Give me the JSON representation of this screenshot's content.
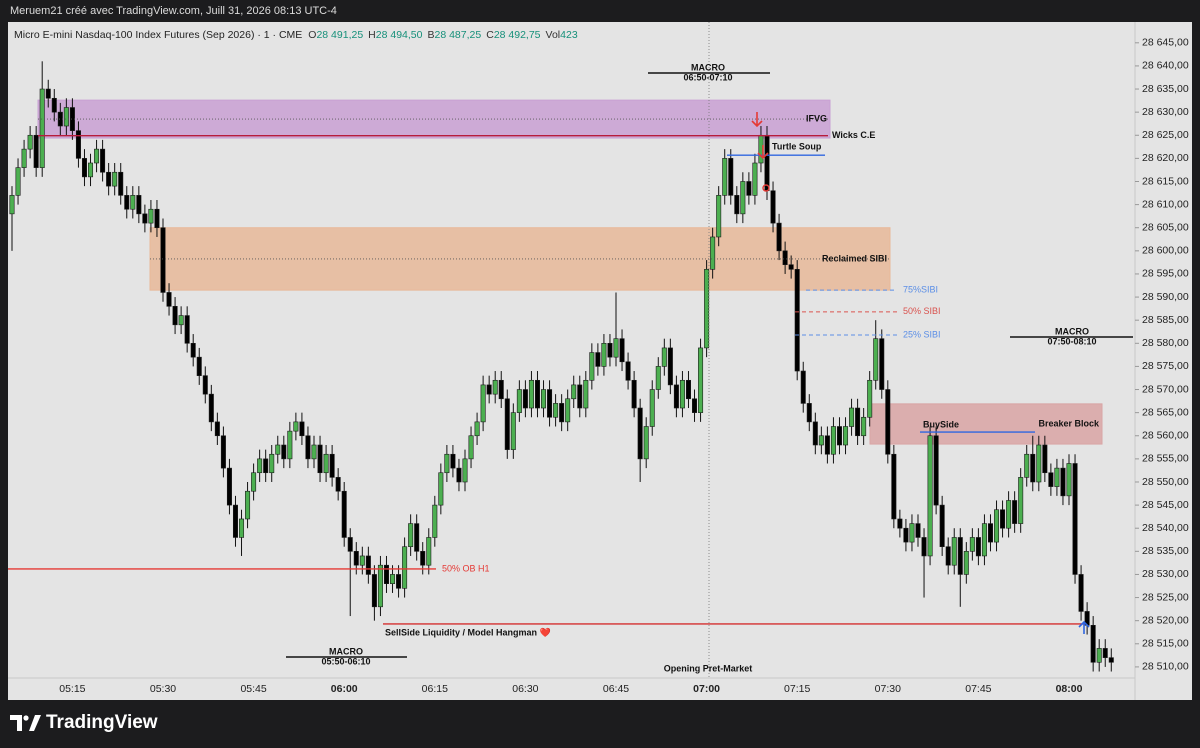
{
  "header": {
    "credit": "Meruem21 créé avec TradingView.com, Juill 31, 2026 08:13 UTC-4"
  },
  "footer": {
    "brand": "TradingView"
  },
  "chart_data": {
    "type": "candlestick",
    "instrument": "Micro E-mini Nasdaq-100 Index Futures (Sep 2026) · 1 · CME",
    "quote": [
      {
        "key": "O",
        "value": "28 491,25"
      },
      {
        "key": "H",
        "value": "28 494,50"
      },
      {
        "key": "B",
        "value": "28 487,25"
      },
      {
        "key": "C",
        "value": "28 492,75"
      },
      {
        "key": "Vol",
        "value": "423"
      }
    ],
    "categories": [
      null,
      null,
      null,
      null,
      null,
      null,
      null,
      null,
      null,
      null,
      "05:15",
      null,
      null,
      null,
      null,
      null,
      null,
      null,
      null,
      null,
      null,
      null,
      null,
      null,
      null,
      "05:30",
      null,
      null,
      null,
      null,
      null,
      null,
      null,
      null,
      null,
      null,
      null,
      null,
      null,
      null,
      "05:45",
      null,
      null,
      null,
      null,
      null,
      null,
      null,
      null,
      null,
      null,
      null,
      null,
      null,
      null,
      "06:00",
      null,
      null,
      null,
      null,
      null,
      null,
      null,
      null,
      null,
      null,
      null,
      null,
      null,
      null,
      "06:15",
      null,
      null,
      null,
      null,
      null,
      null,
      null,
      null,
      null,
      null,
      null,
      null,
      null,
      null,
      "06:30",
      null,
      null,
      null,
      null,
      null,
      null,
      null,
      null,
      null,
      null,
      null,
      null,
      null,
      null,
      "06:45",
      null,
      null,
      null,
      null,
      null,
      null,
      null,
      null,
      null,
      null,
      null,
      null,
      null,
      null,
      "07:00",
      null,
      null,
      null,
      null,
      null,
      null,
      null,
      null,
      null,
      null,
      null,
      null,
      null,
      null,
      "07:15",
      null,
      null,
      null,
      null,
      null,
      null,
      null,
      null,
      null,
      null,
      null,
      null,
      null,
      null,
      "07:30",
      null,
      null,
      null,
      null,
      null,
      null,
      null,
      null,
      null,
      null,
      null,
      null,
      null,
      null,
      "07:45",
      null,
      null,
      null,
      null,
      null,
      null,
      null,
      null,
      null,
      null,
      null,
      null,
      null,
      null,
      "08:00",
      null,
      null,
      null,
      null,
      null,
      null,
      null
    ],
    "open": [
      28608,
      28612,
      28618,
      28622,
      28625,
      28618,
      28635,
      28633,
      28630,
      28627,
      28631,
      28626,
      28620,
      28616,
      28619,
      28622,
      28617,
      28614,
      28617,
      28612,
      28609,
      28612,
      28608,
      28606,
      28609,
      28605,
      28591,
      28588,
      28584,
      28586,
      28580,
      28577,
      28573,
      28569,
      28563,
      28560,
      28553,
      28545,
      28538,
      28542,
      28548,
      28552,
      28555,
      28552,
      28556,
      28558,
      28555,
      28561,
      28563,
      28560,
      28555,
      28558,
      28552,
      28556,
      28551,
      28548,
      28538,
      28535,
      28532,
      28534,
      28530,
      28523,
      28532,
      28528,
      28530,
      28527,
      28536,
      28541,
      28535,
      28532,
      28538,
      28545,
      28552,
      28556,
      28553,
      28550,
      28555,
      28560,
      28563,
      28571,
      28569,
      28572,
      28568,
      28557,
      28565,
      28570,
      28566,
      28572,
      28566,
      28570,
      28564,
      28567,
      28563,
      28568,
      28571,
      28566,
      28572,
      28578,
      28575,
      28580,
      28577,
      28581,
      28576,
      28572,
      28566,
      28555,
      28562,
      28570,
      28575,
      28579,
      28571,
      28566,
      28572,
      28568,
      28565,
      28579,
      28596,
      28603,
      28612,
      28620,
      28612,
      28608,
      28615,
      28612,
      28619,
      28625,
      28613,
      28606,
      28600,
      28597,
      28596,
      28574,
      28567,
      28563,
      28558,
      28560,
      28556,
      28562,
      28558,
      28562,
      28566,
      28560,
      28564,
      28572,
      28581,
      28570,
      28556,
      28542,
      28540,
      28537,
      28541,
      28538,
      28534,
      28560,
      28545,
      28536,
      28532,
      28538,
      28530,
      28535,
      28538,
      28534,
      28541,
      28537,
      28544,
      28540,
      28546,
      28541,
      28551,
      28556,
      28550,
      28558,
      28552,
      28549,
      28553,
      28547,
      28554,
      28530,
      28522,
      28519,
      28511,
      28514,
      28512
    ],
    "high": [
      28614,
      28620,
      28624,
      28627,
      28627,
      28641,
      28637,
      28635,
      28632,
      28633,
      28633,
      28628,
      28622,
      28621,
      28624,
      28624,
      28619,
      28619,
      28619,
      28614,
      28614,
      28614,
      28610,
      28611,
      28611,
      28607,
      28593,
      28590,
      28588,
      28588,
      28582,
      28579,
      28575,
      28571,
      28565,
      28562,
      28555,
      28547,
      28544,
      28550,
      28554,
      28557,
      28557,
      28558,
      28560,
      28560,
      28563,
      28565,
      28565,
      28562,
      28560,
      28560,
      28558,
      28558,
      28553,
      28550,
      28540,
      28537,
      28536,
      28536,
      28532,
      28534,
      28534,
      28532,
      28532,
      28538,
      28543,
      28543,
      28537,
      28540,
      28547,
      28554,
      28558,
      28558,
      28555,
      28557,
      28562,
      28565,
      28573,
      28573,
      28574,
      28574,
      28570,
      28567,
      28572,
      28572,
      28574,
      28574,
      28572,
      28572,
      28569,
      28569,
      28570,
      28573,
      28573,
      28574,
      28580,
      28580,
      28582,
      28582,
      28591,
      28583,
      28578,
      28574,
      28568,
      28564,
      28572,
      28577,
      28581,
      28581,
      28573,
      28574,
      28574,
      28570,
      28581,
      28598,
      28605,
      28614,
      28622,
      28622,
      28614,
      28617,
      28617,
      28621,
      28627,
      28627,
      28615,
      28608,
      28602,
      28599,
      28598,
      28576,
      28569,
      28565,
      28562,
      28562,
      28564,
      28564,
      28564,
      28568,
      28568,
      28566,
      28574,
      28585,
      28583,
      28572,
      28558,
      28544,
      28542,
      28543,
      28543,
      28540,
      28562,
      28562,
      28547,
      28538,
      28540,
      28540,
      28537,
      28540,
      28540,
      28543,
      28543,
      28546,
      28546,
      28548,
      28548,
      28553,
      28558,
      28560,
      28560,
      28560,
      28554,
      28555,
      28555,
      28556,
      28556,
      28532,
      28524,
      28521,
      28516,
      28516,
      28514
    ],
    "low": [
      28600,
      28610,
      28616,
      28620,
      28616,
      28616,
      28631,
      28628,
      28625,
      28625,
      28624,
      28618,
      28614,
      28614,
      28617,
      28615,
      28612,
      28612,
      28610,
      28607,
      28607,
      28606,
      28604,
      28604,
      28603,
      28589,
      28586,
      28582,
      28582,
      28578,
      28575,
      28571,
      28567,
      28561,
      28558,
      28551,
      28543,
      28536,
      28534,
      28540,
      28546,
      28550,
      28550,
      28550,
      28554,
      28553,
      28553,
      28559,
      28558,
      28553,
      28553,
      28550,
      28550,
      28549,
      28546,
      28536,
      28521,
      28530,
      28530,
      28528,
      28520,
      28521,
      28526,
      28526,
      28525,
      28525,
      28534,
      28533,
      28530,
      28530,
      28536,
      28543,
      28550,
      28551,
      28548,
      28548,
      28553,
      28558,
      28561,
      28567,
      28567,
      28566,
      28555,
      28555,
      28563,
      28564,
      28564,
      28564,
      28564,
      28562,
      28562,
      28561,
      28561,
      28566,
      28564,
      28564,
      28570,
      28573,
      28573,
      28575,
      28575,
      28574,
      28570,
      28564,
      28550,
      28553,
      28560,
      28568,
      28573,
      28569,
      28564,
      28564,
      28566,
      28563,
      28563,
      28577,
      28594,
      28601,
      28610,
      28610,
      28606,
      28606,
      28610,
      28610,
      28617,
      28611,
      28604,
      28598,
      28595,
      28594,
      28572,
      28565,
      28561,
      28556,
      28556,
      28554,
      28554,
      28556,
      28556,
      28560,
      28558,
      28558,
      28562,
      28570,
      28568,
      28554,
      28540,
      28538,
      28535,
      28535,
      28536,
      28525,
      28532,
      28543,
      28534,
      28530,
      28530,
      28523,
      28528,
      28533,
      28532,
      28532,
      28535,
      28535,
      28538,
      28538,
      28539,
      28539,
      28549,
      28548,
      28548,
      28550,
      28547,
      28547,
      28545,
      28545,
      28528,
      28520,
      28517,
      28509,
      28509,
      28510,
      28509
    ],
    "close": [
      28612,
      28618,
      28622,
      28625,
      28618,
      28635,
      28633,
      28630,
      28627,
      28631,
      28626,
      28620,
      28616,
      28619,
      28622,
      28617,
      28614,
      28617,
      28612,
      28609,
      28612,
      28608,
      28606,
      28609,
      28605,
      28591,
      28588,
      28584,
      28586,
      28580,
      28577,
      28573,
      28569,
      28563,
      28560,
      28553,
      28545,
      28538,
      28542,
      28548,
      28552,
      28555,
      28552,
      28556,
      28558,
      28555,
      28561,
      28563,
      28560,
      28555,
      28558,
      28552,
      28556,
      28551,
      28548,
      28538,
      28535,
      28532,
      28534,
      28530,
      28523,
      28532,
      28528,
      28530,
      28527,
      28536,
      28541,
      28535,
      28532,
      28538,
      28545,
      28552,
      28556,
      28553,
      28550,
      28555,
      28560,
      28563,
      28571,
      28569,
      28572,
      28568,
      28557,
      28565,
      28570,
      28566,
      28572,
      28566,
      28570,
      28564,
      28567,
      28563,
      28568,
      28571,
      28566,
      28572,
      28578,
      28575,
      28580,
      28577,
      28581,
      28576,
      28572,
      28566,
      28555,
      28562,
      28570,
      28575,
      28579,
      28571,
      28566,
      28572,
      28568,
      28565,
      28579,
      28596,
      28603,
      28612,
      28620,
      28612,
      28608,
      28615,
      28612,
      28619,
      28625,
      28613,
      28606,
      28600,
      28597,
      28596,
      28574,
      28567,
      28563,
      28558,
      28560,
      28556,
      28562,
      28558,
      28562,
      28566,
      28560,
      28564,
      28572,
      28581,
      28570,
      28556,
      28542,
      28540,
      28537,
      28541,
      28538,
      28534,
      28560,
      28545,
      28536,
      28532,
      28538,
      28530,
      28535,
      28538,
      28534,
      28541,
      28537,
      28544,
      28540,
      28546,
      28541,
      28551,
      28556,
      28550,
      28558,
      28552,
      28549,
      28553,
      28547,
      28554,
      28530,
      28522,
      28519,
      28511,
      28514,
      28512,
      28511
    ],
    "up_color": "#4caf50",
    "down_color": "#000000",
    "ylim": [
      28507.6,
      28649.5
    ],
    "yticks": [
      {
        "value": 28510,
        "label": "28 510,00"
      },
      {
        "value": 28515,
        "label": "28 515,00"
      },
      {
        "value": 28520,
        "label": "28 520,00"
      },
      {
        "value": 28525,
        "label": "28 525,00"
      },
      {
        "value": 28530,
        "label": "28 530,00"
      },
      {
        "value": 28535,
        "label": "28 535,00"
      },
      {
        "value": 28540,
        "label": "28 540,00"
      },
      {
        "value": 28545,
        "label": "28 545,00"
      },
      {
        "value": 28550,
        "label": "28 550,00"
      },
      {
        "value": 28555,
        "label": "28 555,00"
      },
      {
        "value": 28560,
        "label": "28 560,00"
      },
      {
        "value": 28565,
        "label": "28 565,00"
      },
      {
        "value": 28570,
        "label": "28 570,00"
      },
      {
        "value": 28575,
        "label": "28 575,00"
      },
      {
        "value": 28580,
        "label": "28 580,00"
      },
      {
        "value": 28585,
        "label": "28 585,00"
      },
      {
        "value": 28590,
        "label": "28 590,00"
      },
      {
        "value": 28595,
        "label": "28 595,00"
      },
      {
        "value": 28600,
        "label": "28 600,00"
      },
      {
        "value": 28605,
        "label": "28 605,00"
      },
      {
        "value": 28610,
        "label": "28 610,00"
      },
      {
        "value": 28615,
        "label": "28 615,00"
      },
      {
        "value": 28620,
        "label": "28 620,00"
      },
      {
        "value": 28625,
        "label": "28 625,00"
      },
      {
        "value": 28630,
        "label": "28 630,00"
      },
      {
        "value": 28635,
        "label": "28 635,00"
      },
      {
        "value": 28640,
        "label": "28 640,00"
      },
      {
        "value": 28645,
        "label": "28 645,00"
      }
    ],
    "grid": false,
    "zones": [
      {
        "label": "IFVG",
        "low": 28624.4,
        "high": 28632.6,
        "color": "#c9a0d4"
      },
      {
        "label": "Reclaimed SIBI",
        "low": 28591.5,
        "high": 28605,
        "color": "#e8b899"
      },
      {
        "label": "Breaker Block",
        "low": 28558.2,
        "high": 28566.9,
        "color": "#d9a5a5"
      }
    ],
    "levels": [
      {
        "label": "Wicks C.E",
        "price": 28624.9,
        "color": "#b71c3c",
        "style": "solid"
      },
      {
        "label": "Turtle Soup",
        "price": 28620.7,
        "color": "#2f66e0",
        "style": "solid"
      },
      {
        "label": "75%SIBI",
        "price": 28591.5,
        "color": "#5b8ee6",
        "style": "dashed"
      },
      {
        "label": "50% SIBI",
        "price": 28586.8,
        "color": "#d9534f",
        "style": "dashed"
      },
      {
        "label": "25% SIBI",
        "price": 28581.8,
        "color": "#5b8ee6",
        "style": "dashed"
      },
      {
        "label": "BuySide",
        "price": 28560.8,
        "color": "#2f66e0",
        "style": "solid"
      },
      {
        "label": "50% OB H1",
        "price": 28531.2,
        "color": "#e53935",
        "style": "solid"
      },
      {
        "label": "SellSide Liquidity / Model Hangman ❤️",
        "price": 28519.3,
        "color": "#d32f2f",
        "style": "solid"
      }
    ],
    "macros": [
      {
        "label": "MACRO",
        "range": "06:50-07:10"
      },
      {
        "label": "MACRO",
        "range": "07:50-08:10"
      },
      {
        "label": "MACRO",
        "range": "05:50-06:10"
      }
    ],
    "session_label": "Opening Pret-Market"
  }
}
